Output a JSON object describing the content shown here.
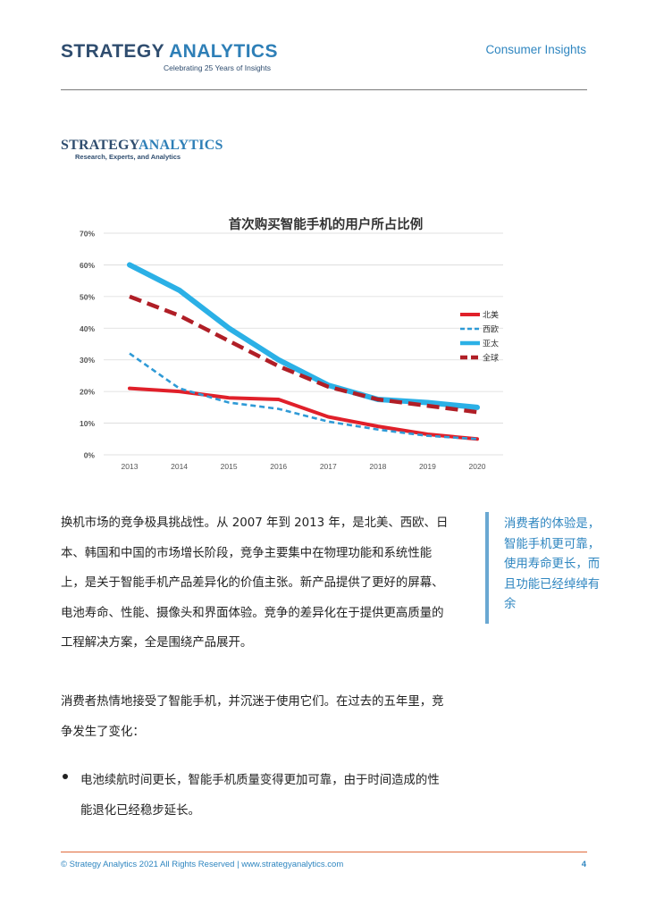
{
  "header": {
    "logo_part1": "STRATEGY ",
    "logo_part2": "ANALYTICS",
    "tagline": "Celebrating 25 Years of Insights",
    "section": "Consumer Insights"
  },
  "logo2": {
    "part1": "STRATEGY",
    "part2": "ANALYTICS",
    "sub": "Research, Experts, and Analytics"
  },
  "chart_data": {
    "type": "line",
    "title": "首次购买智能手机的用户所占比例",
    "x": [
      "2013",
      "2014",
      "2015",
      "2016",
      "2017",
      "2018",
      "2019",
      "2020"
    ],
    "y_ticks": [
      "0%",
      "10%",
      "20%",
      "30%",
      "40%",
      "50%",
      "60%",
      "70%"
    ],
    "ylim": [
      0,
      70
    ],
    "grid": true,
    "legend_position": "right",
    "series": [
      {
        "name": "北美",
        "values": [
          21,
          20,
          18,
          17.5,
          12,
          9,
          6.5,
          5
        ],
        "color": "#e0202a",
        "style": "solid",
        "width": 4
      },
      {
        "name": "西欧",
        "values": [
          32,
          21,
          16.5,
          14.5,
          10.5,
          8,
          6,
          5
        ],
        "color": "#2f9ad6",
        "style": "dashed",
        "width": 2.6
      },
      {
        "name": "亚太",
        "values": [
          60,
          52,
          40,
          30,
          22,
          17.5,
          16.5,
          15
        ],
        "color": "#2bb0e6",
        "style": "solid",
        "width": 6
      },
      {
        "name": "全球",
        "values": [
          50,
          44,
          36,
          28,
          21.5,
          17.5,
          15.5,
          13.5
        ],
        "color": "#b01e26",
        "style": "dashed",
        "width": 4.5
      }
    ]
  },
  "body": {
    "para1": [
      "换机市场的竞争极具挑战性。从 2007 年到 2013 年，是北美、西欧、日",
      "本、韩国和中国的市场增长阶段，竞争主要集中在物理功能和系统性能",
      "上，是关于智能手机产品差异化的价值主张。新产品提供了更好的屏幕、",
      "电池寿命、性能、摄像头和界面体验。竞争的差异化在于提供更高质量的",
      "工程解决方案，全是围绕产品展开。"
    ],
    "para2": [
      "消费者热情地接受了智能手机，并沉迷于使用它们。在过去的五年里，竞",
      "争发生了变化："
    ],
    "bullet": [
      "电池续航时间更长，智能手机质量变得更加可靠，由于时间造成的性",
      "能退化已经稳步延长。"
    ],
    "pullquote": "消费者的体验是，智能手机更可靠，使用寿命更长，而且功能已经绰绰有余"
  },
  "footer": {
    "copyright": "© Strategy Analytics 2021 All Rights Reserved | www.strategyanalytics.com",
    "page_number": "4"
  }
}
